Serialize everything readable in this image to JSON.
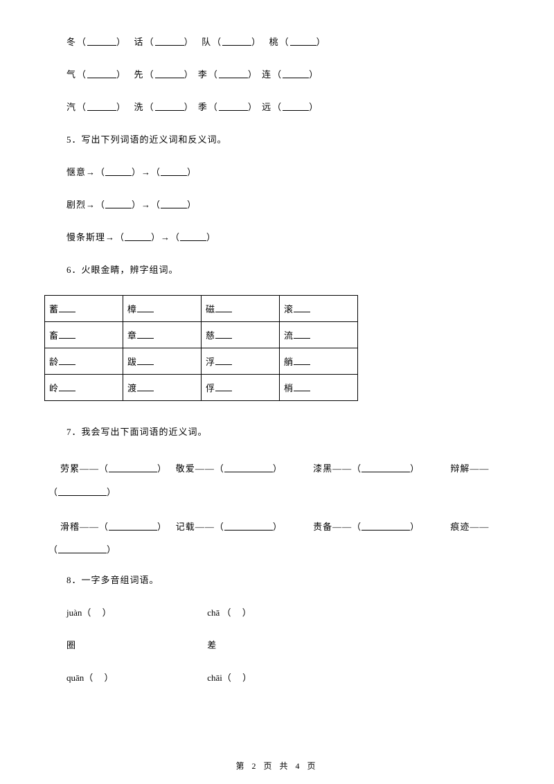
{
  "rows4": [
    {
      "a": "冬",
      "b": "话",
      "c": "队",
      "d": "桃"
    },
    {
      "a": "气",
      "b": "先",
      "c": "李",
      "d": "连"
    },
    {
      "a": "汽",
      "b": "洗",
      "c": "季",
      "d": "远"
    }
  ],
  "q5": {
    "num": "5",
    "title": "．写出下列词语的近义词和反义词。",
    "items": [
      "惬意",
      "剧烈",
      "慢条斯理"
    ]
  },
  "q6": {
    "num": "6",
    "title": "．火眼金睛，辨字组词。",
    "table": [
      [
        "蓄",
        "樟",
        "磁",
        "滚"
      ],
      [
        "畜",
        "章",
        "慈",
        "流"
      ],
      [
        "龄",
        "跋",
        "浮",
        "艄"
      ],
      [
        "岭",
        "渡",
        "俘",
        "梢"
      ]
    ]
  },
  "q7": {
    "num": "7",
    "title": "．我会写出下面词语的近义词。",
    "row1": [
      "劳累",
      "敬爱",
      "漆黑",
      "辩解"
    ],
    "row2": [
      "滑稽",
      "记载",
      "责备",
      "痕迹"
    ]
  },
  "q8": {
    "num": "8",
    "title": "．一字多音组词语。",
    "r1": {
      "a": "juàn",
      "b": "chā"
    },
    "r2": {
      "a": "圈",
      "b": "差"
    },
    "r3": {
      "a": "quān",
      "b": "chāi"
    }
  },
  "footer": {
    "pre": "第",
    "cur": "2",
    "mid": "页 共",
    "total": "4",
    "post": "页"
  }
}
